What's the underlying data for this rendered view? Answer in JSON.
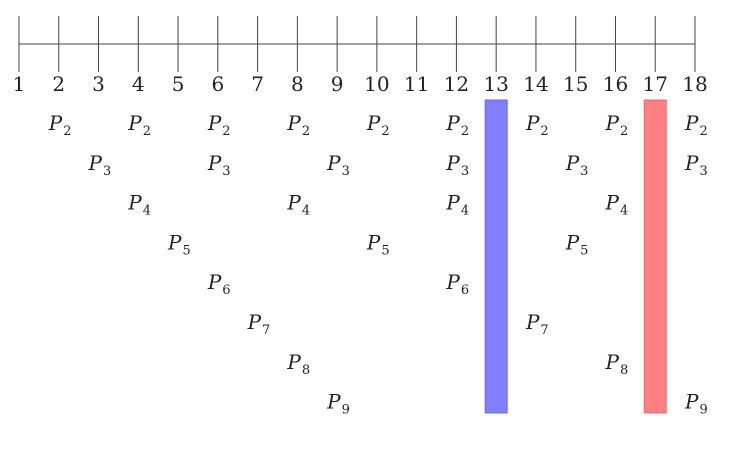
{
  "number_line": {
    "ticks": [
      1,
      2,
      3,
      4,
      5,
      6,
      7,
      8,
      9,
      10,
      11,
      12,
      13,
      14,
      15,
      16,
      17,
      18
    ]
  },
  "rows": [
    {
      "symbol": "P",
      "index": "2",
      "positions": [
        2,
        4,
        6,
        8,
        10,
        12,
        14,
        16,
        18
      ]
    },
    {
      "symbol": "P",
      "index": "3",
      "positions": [
        3,
        6,
        9,
        12,
        15,
        18
      ]
    },
    {
      "symbol": "P",
      "index": "4",
      "positions": [
        4,
        8,
        12,
        16
      ]
    },
    {
      "symbol": "P",
      "index": "5",
      "positions": [
        5,
        10,
        15
      ]
    },
    {
      "symbol": "P",
      "index": "6",
      "positions": [
        6,
        12
      ]
    },
    {
      "symbol": "P",
      "index": "7",
      "positions": [
        7,
        14
      ]
    },
    {
      "symbol": "P",
      "index": "8",
      "positions": [
        8,
        16
      ]
    },
    {
      "symbol": "P",
      "index": "9",
      "positions": [
        9,
        18
      ]
    }
  ],
  "highlights": [
    {
      "position": 13,
      "color": "#8080ff",
      "border": "#6a6af0"
    },
    {
      "position": 17,
      "color": "#ff8080",
      "border": "#f06a6a"
    }
  ]
}
